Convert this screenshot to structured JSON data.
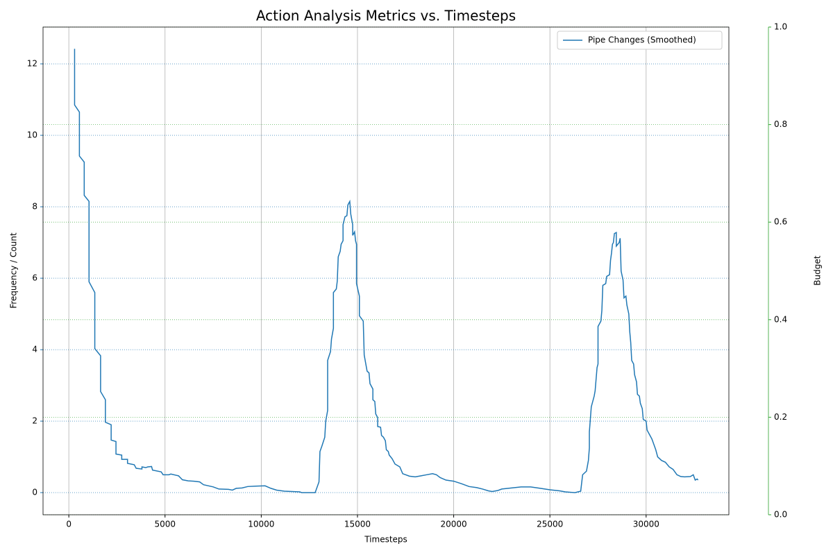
{
  "chart_data": {
    "type": "line",
    "title": "Action Analysis Metrics vs. Timesteps",
    "x_label": "Timesteps",
    "y_label": "Frequency / Count",
    "y2_label": "Budget",
    "x": [
      300,
      300,
      550,
      550,
      800,
      800,
      1050,
      1050,
      1350,
      1350,
      1650,
      1650,
      1900,
      1900,
      2200,
      2200,
      2450,
      2450,
      2750,
      2750,
      3050,
      3050,
      3400,
      3500,
      3800,
      3800,
      4000,
      4100,
      4300,
      4350,
      4800,
      4900,
      5200,
      5300,
      5700,
      5900,
      6200,
      6500,
      6800,
      7000,
      7500,
      7800,
      8300,
      8500,
      8700,
      9000,
      9300,
      9700,
      10200,
      10500,
      10800,
      11200,
      12000,
      12100,
      12800,
      13000,
      13050,
      13150,
      13300,
      13350,
      13450,
      13450,
      13600,
      13650,
      13750,
      13750,
      13900,
      13950,
      14000,
      14100,
      14150,
      14250,
      14250,
      14350,
      14450,
      14500,
      14600,
      14650,
      14750,
      14750,
      14850,
      14900,
      14950,
      14950,
      15100,
      15100,
      15300,
      15350,
      15500,
      15600,
      15650,
      15800,
      15800,
      15900,
      15950,
      16050,
      16050,
      16200,
      16250,
      16350,
      16450,
      16500,
      16600,
      16650,
      16800,
      16950,
      17200,
      17350,
      17500,
      17700,
      18000,
      18300,
      18600,
      18900,
      19100,
      19300,
      19600,
      20000,
      20400,
      20800,
      21200,
      21500,
      21800,
      22000,
      22300,
      22500,
      23000,
      23500,
      24000,
      24500,
      25000,
      25500,
      25800,
      26300,
      26600,
      26700,
      26800,
      26900,
      27000,
      27050,
      27050,
      27150,
      27300,
      27350,
      27450,
      27500,
      27500,
      27650,
      27700,
      27750,
      27900,
      27950,
      28100,
      28150,
      28200,
      28250,
      28300,
      28350,
      28450,
      28450,
      28600,
      28650,
      28700,
      28800,
      28850,
      28950,
      29000,
      29100,
      29150,
      29200,
      29250,
      29350,
      29400,
      29500,
      29550,
      29650,
      29700,
      29800,
      29850,
      30000,
      30050,
      30150,
      30300,
      30400,
      30500,
      30600,
      30800,
      31000,
      31200,
      31400,
      31600,
      31800,
      32000,
      32300,
      32450,
      32550,
      32650,
      32700
    ],
    "series": [
      {
        "name": "Pipe Changes (Smoothed)",
        "color": "#1f77b4",
        "values": [
          12.42,
          10.85,
          10.65,
          9.42,
          9.25,
          8.32,
          8.15,
          5.9,
          5.6,
          4.03,
          3.83,
          2.83,
          2.6,
          1.97,
          1.9,
          1.47,
          1.43,
          1.08,
          1.05,
          0.93,
          0.93,
          0.82,
          0.78,
          0.68,
          0.66,
          0.72,
          0.7,
          0.72,
          0.73,
          0.63,
          0.58,
          0.5,
          0.5,
          0.52,
          0.47,
          0.36,
          0.33,
          0.32,
          0.3,
          0.22,
          0.16,
          0.1,
          0.09,
          0.07,
          0.12,
          0.13,
          0.17,
          0.18,
          0.19,
          0.12,
          0.07,
          0.04,
          0.02,
          0,
          0,
          0.3,
          1.15,
          1.3,
          1.55,
          2.0,
          2.3,
          3.7,
          3.95,
          4.3,
          4.6,
          5.6,
          5.7,
          5.92,
          6.6,
          6.75,
          6.95,
          7.05,
          7.5,
          7.72,
          7.75,
          8.05,
          8.15,
          7.8,
          7.5,
          7.2,
          7.3,
          7.05,
          6.95,
          5.85,
          5.5,
          4.95,
          4.8,
          3.85,
          3.4,
          3.35,
          3.05,
          2.9,
          2.6,
          2.55,
          2.2,
          2.1,
          1.85,
          1.83,
          1.6,
          1.55,
          1.45,
          1.2,
          1.15,
          1.05,
          0.95,
          0.8,
          0.72,
          0.53,
          0.5,
          0.46,
          0.44,
          0.47,
          0.5,
          0.53,
          0.5,
          0.42,
          0.35,
          0.32,
          0.25,
          0.17,
          0.14,
          0.1,
          0.05,
          0.03,
          0.06,
          0.1,
          0.13,
          0.16,
          0.16,
          0.12,
          0.08,
          0.05,
          0.02,
          0,
          0.04,
          0.5,
          0.55,
          0.6,
          0.9,
          1.25,
          1.7,
          2.4,
          2.7,
          2.85,
          3.5,
          3.6,
          4.65,
          4.8,
          5.1,
          5.8,
          5.85,
          6.05,
          6.1,
          6.5,
          6.7,
          6.95,
          7.0,
          7.25,
          7.28,
          6.9,
          7.0,
          7.12,
          6.2,
          5.95,
          5.45,
          5.5,
          5.25,
          5.0,
          4.5,
          4.2,
          3.7,
          3.6,
          3.3,
          3.1,
          2.75,
          2.7,
          2.5,
          2.35,
          2.05,
          2.0,
          1.75,
          1.65,
          1.5,
          1.35,
          1.2,
          1.0,
          0.9,
          0.85,
          0.72,
          0.65,
          0.5,
          0.45,
          0.44,
          0.45,
          0.5,
          0.35,
          0.38,
          0.35
        ]
      }
    ],
    "xlim": [
      -1340,
      34300
    ],
    "xticks": [
      0,
      5000,
      10000,
      15000,
      20000,
      25000,
      30000
    ],
    "ylim": [
      -0.62,
      13.03
    ],
    "yticks": [
      0,
      2,
      4,
      6,
      8,
      10,
      12
    ],
    "y2lim": [
      0,
      1
    ],
    "y2ticks": [
      {
        "value": 0,
        "label": "0.0"
      },
      0.2,
      0.4,
      0.6,
      0.8,
      {
        "value": 1,
        "label": "1.0"
      }
    ],
    "y_color": "#1f77b4",
    "y2_color": "#2ca02c",
    "grid": true,
    "legend": "upper right"
  }
}
